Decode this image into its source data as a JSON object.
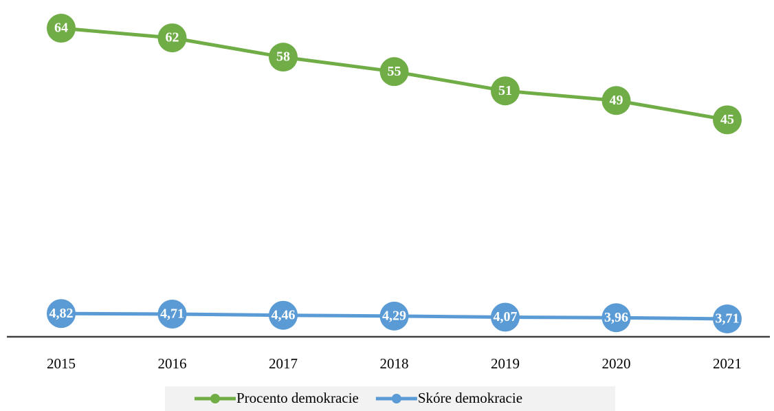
{
  "chart_data": {
    "type": "line",
    "categories": [
      "2015",
      "2016",
      "2017",
      "2018",
      "2019",
      "2020",
      "2021"
    ],
    "series": [
      {
        "name": "Procento demokracie",
        "color": "#70ad47",
        "values": [
          64,
          62,
          58,
          55,
          51,
          49,
          45
        ]
      },
      {
        "name": "Skóre demokracie",
        "color": "#5b9bd5",
        "values": [
          4.82,
          4.71,
          4.46,
          4.29,
          4.07,
          3.96,
          3.71
        ],
        "value_labels": [
          "4,82",
          "4,71",
          "4,46",
          "4,29",
          "4,07",
          "3,96",
          "3,71"
        ]
      }
    ],
    "ylim": [
      0,
      67
    ],
    "legend": "bottom"
  }
}
